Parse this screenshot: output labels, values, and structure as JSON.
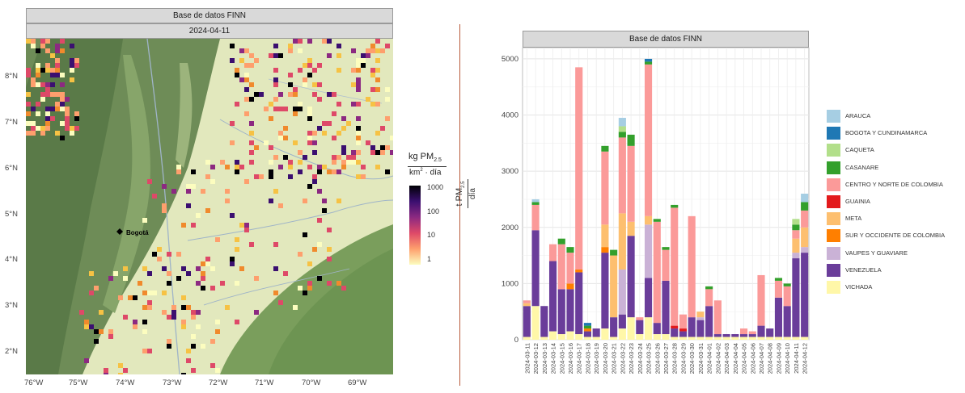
{
  "map": {
    "strip_title": "Base de datos FINN",
    "strip_date": "2024-04-11",
    "city_label": "Bogotá",
    "lat_ticks": [
      "8°N",
      "7°N",
      "6°N",
      "5°N",
      "4°N",
      "3°N",
      "2°N"
    ],
    "lon_ticks": [
      "76°W",
      "75°W",
      "74°W",
      "73°W",
      "72°W",
      "71°W",
      "70°W",
      "69°W"
    ],
    "legend": {
      "unit_top": "kg PM",
      "unit_top_sub": "2.5",
      "unit_bottom_a": "km",
      "unit_bottom_sup": "2",
      "unit_bottom_b": " · día",
      "scale": "log",
      "ticks": [
        "1000",
        "100",
        "10",
        "1"
      ],
      "colors": [
        "#000004",
        "#3b0f70",
        "#8c2981",
        "#de4968",
        "#fe9f6d",
        "#fcfdbf"
      ]
    }
  },
  "chart": {
    "strip_title": "Base de datos FINN",
    "ylabel_main": "t PM",
    "ylabel_sub": "2.5",
    "ylabel_den": "día"
  },
  "chart_data": {
    "type": "bar",
    "stacked": true,
    "title": "Base de datos FINN",
    "ylim": [
      0,
      5200
    ],
    "yticks": [
      0,
      1000,
      2000,
      3000,
      4000,
      5000
    ],
    "grid": true,
    "legend_position": "right",
    "categories": [
      "2024-03-11",
      "2024-03-12",
      "2024-03-13",
      "2024-03-14",
      "2024-03-15",
      "2024-03-16",
      "2024-03-17",
      "2024-03-18",
      "2024-03-19",
      "2024-03-20",
      "2024-03-21",
      "2024-03-22",
      "2024-03-23",
      "2024-03-24",
      "2024-03-25",
      "2024-03-26",
      "2024-03-27",
      "2024-03-28",
      "2024-03-29",
      "2024-03-30",
      "2024-03-31",
      "2024-04-01",
      "2024-04-02",
      "2024-04-03",
      "2024-04-04",
      "2024-04-05",
      "2024-04-06",
      "2024-04-07",
      "2024-04-08",
      "2024-04-09",
      "2024-04-10",
      "2024-04-11",
      "2024-04-12"
    ],
    "xtick_labels": [
      "2024-03-11",
      "2024-03-12",
      "2024-03-13",
      "2024-03-14",
      "2024-03-15",
      "2024-03-16",
      "2024-03-17",
      "2024-03-18",
      "2024-03-19",
      "2024-03-20",
      "2024-03-21",
      "2024-03-22",
      "2024-03-23",
      "2024-03-24",
      "2024-03-25",
      "2024-03-26",
      "2024-03-27",
      "2024-03-28",
      "2024-03-29",
      "2024-03-30",
      "2024-03-31",
      "2024-04-01",
      "2024-04-02",
      "2024-04-03",
      "2024-04-04",
      "2024-04-05",
      "2024-04-06",
      "2024-04-07",
      "2024-04-08",
      "2024-04-09",
      "2024-04-10",
      "2024-04-11",
      "2024-04-12"
    ],
    "series": [
      {
        "name": "VICHADA",
        "color": "#fff7a8",
        "values": [
          50,
          600,
          50,
          150,
          100,
          150,
          100,
          50,
          50,
          200,
          50,
          200,
          400,
          100,
          400,
          100,
          100,
          50,
          50,
          50,
          50,
          50,
          50,
          50,
          50,
          50,
          50,
          50,
          50,
          50,
          50,
          50,
          50
        ]
      },
      {
        "name": "VENEZUELA",
        "color": "#6a3d9a",
        "values": [
          550,
          1350,
          550,
          1250,
          800,
          750,
          1100,
          100,
          150,
          1350,
          350,
          250,
          1450,
          250,
          700,
          200,
          950,
          150,
          100,
          350,
          300,
          550,
          50,
          50,
          50,
          50,
          50,
          200,
          150,
          700,
          550,
          1400,
          1500
        ]
      },
      {
        "name": "VAUPES Y GUAVIARE",
        "color": "#cab2d6",
        "values": [
          0,
          0,
          0,
          0,
          0,
          0,
          0,
          0,
          0,
          0,
          0,
          800,
          0,
          0,
          950,
          0,
          0,
          0,
          0,
          0,
          50,
          0,
          0,
          0,
          0,
          0,
          0,
          0,
          0,
          0,
          0,
          100,
          100
        ]
      },
      {
        "name": "SUR Y OCCIDENTE DE COLOMBIA",
        "color": "#ff7f00",
        "values": [
          0,
          0,
          0,
          0,
          0,
          100,
          50,
          50,
          0,
          100,
          0,
          0,
          0,
          0,
          0,
          0,
          0,
          0,
          0,
          0,
          0,
          0,
          0,
          0,
          0,
          0,
          0,
          0,
          0,
          0,
          0,
          0,
          0
        ]
      },
      {
        "name": "META",
        "color": "#fdbf6f",
        "values": [
          50,
          0,
          0,
          0,
          0,
          0,
          0,
          0,
          0,
          400,
          1100,
          1000,
          250,
          0,
          150,
          0,
          0,
          0,
          0,
          0,
          100,
          0,
          0,
          0,
          0,
          0,
          0,
          0,
          0,
          0,
          0,
          250,
          350
        ]
      },
      {
        "name": "GUAINIA",
        "color": "#e31a1c",
        "values": [
          0,
          0,
          0,
          0,
          0,
          0,
          0,
          0,
          0,
          0,
          0,
          0,
          0,
          0,
          0,
          0,
          0,
          50,
          50,
          0,
          0,
          0,
          0,
          0,
          0,
          0,
          0,
          0,
          0,
          0,
          0,
          0,
          0
        ]
      },
      {
        "name": "CENTRO Y NORTE DE COLOMBIA",
        "color": "#fb9a99",
        "values": [
          50,
          450,
          0,
          300,
          800,
          550,
          3600,
          0,
          0,
          1300,
          0,
          1350,
          1350,
          50,
          2700,
          1800,
          550,
          2100,
          250,
          1800,
          0,
          300,
          600,
          0,
          0,
          100,
          50,
          900,
          0,
          300,
          350,
          150,
          300
        ]
      },
      {
        "name": "CASANARE",
        "color": "#33a02c",
        "values": [
          0,
          50,
          0,
          0,
          100,
          100,
          0,
          50,
          0,
          100,
          100,
          100,
          200,
          0,
          50,
          50,
          50,
          50,
          0,
          0,
          0,
          50,
          0,
          0,
          0,
          0,
          0,
          0,
          0,
          50,
          50,
          100,
          150
        ]
      },
      {
        "name": "CAQUETA",
        "color": "#b2df8a",
        "values": [
          0,
          0,
          0,
          0,
          0,
          0,
          0,
          0,
          0,
          0,
          0,
          100,
          0,
          0,
          0,
          0,
          0,
          0,
          0,
          0,
          0,
          0,
          0,
          0,
          0,
          0,
          0,
          0,
          0,
          0,
          0,
          100,
          0
        ]
      },
      {
        "name": "BOGOTA Y CUNDINAMARCA",
        "color": "#1f78b4",
        "values": [
          0,
          0,
          0,
          0,
          0,
          0,
          0,
          50,
          0,
          0,
          0,
          0,
          0,
          0,
          50,
          0,
          0,
          0,
          0,
          0,
          0,
          0,
          0,
          0,
          0,
          0,
          0,
          0,
          0,
          0,
          0,
          0,
          0
        ]
      },
      {
        "name": "ARAUCA",
        "color": "#a6cee3",
        "values": [
          0,
          50,
          0,
          0,
          0,
          0,
          0,
          0,
          0,
          0,
          0,
          150,
          0,
          0,
          0,
          0,
          0,
          0,
          0,
          0,
          0,
          0,
          0,
          0,
          0,
          0,
          0,
          0,
          0,
          0,
          0,
          0,
          150
        ]
      }
    ]
  }
}
